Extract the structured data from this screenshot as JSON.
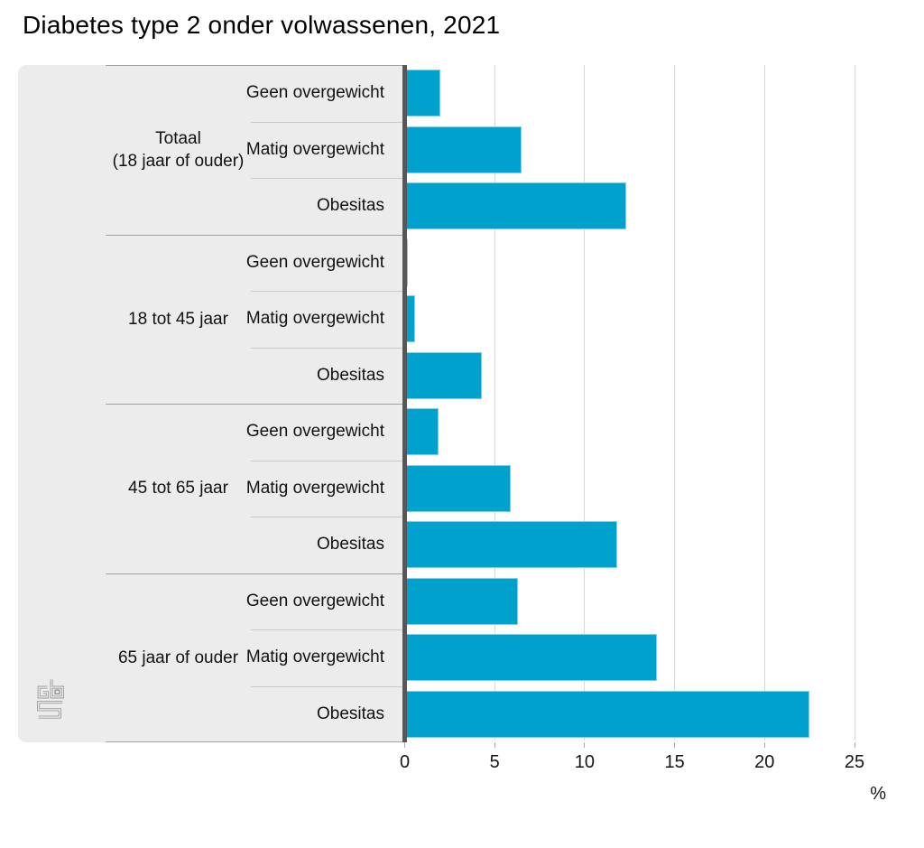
{
  "title": "Diabetes type 2 onder volwassenen, 2021",
  "source": "CBS",
  "colors": {
    "bar": "#00a1cd",
    "panel_bg": "#ececec",
    "axis_line": "#57575a",
    "gridline": "#d8d8d8",
    "group_separator": "#a2a2a2",
    "row_separator": "#c9c9c9",
    "logo_gray": "#9b9b9b",
    "text": "#111111"
  },
  "chart_data": {
    "type": "bar",
    "orientation": "horizontal",
    "title": "Diabetes type 2 onder volwassenen, 2021",
    "xlabel": "%",
    "unit": "%",
    "xlim": [
      0,
      25
    ],
    "xticks": [
      "0",
      "5",
      "10",
      "15",
      "20",
      "25"
    ],
    "grid": true,
    "legend": "none",
    "groups": [
      {
        "label": [
          "Totaal",
          "(18 jaar of ouder)"
        ],
        "categories": [
          "Geen overgewicht",
          "Matig overgewicht",
          "Obesitas"
        ],
        "values": [
          2.0,
          6.5,
          12.3
        ]
      },
      {
        "label": [
          "18 tot 45 jaar"
        ],
        "categories": [
          "Geen overgewicht",
          "Matig overgewicht",
          "Obesitas"
        ],
        "values": [
          0.2,
          0.6,
          4.3
        ]
      },
      {
        "label": [
          "45 tot 65 jaar"
        ],
        "categories": [
          "Geen overgewicht",
          "Matig overgewicht",
          "Obesitas"
        ],
        "values": [
          1.9,
          5.9,
          11.8
        ]
      },
      {
        "label": [
          "65 jaar of ouder"
        ],
        "categories": [
          "Geen overgewicht",
          "Matig overgewicht",
          "Obesitas"
        ],
        "values": [
          6.3,
          14.0,
          22.5
        ]
      }
    ]
  }
}
